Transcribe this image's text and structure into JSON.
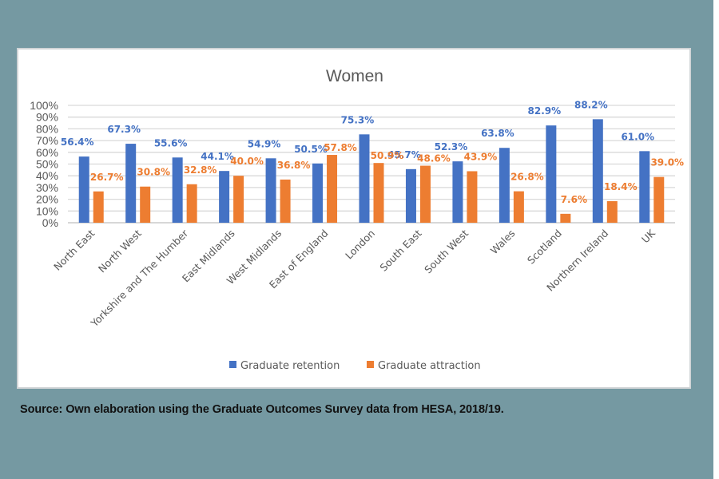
{
  "chart_data": {
    "type": "bar",
    "title": "Women",
    "xlabel": "",
    "ylabel": "",
    "ylim": [
      0,
      100
    ],
    "y_ticks": [
      "0%",
      "10%",
      "20%",
      "30%",
      "40%",
      "50%",
      "60%",
      "70%",
      "80%",
      "90%",
      "100%"
    ],
    "grid": true,
    "legend_position": "bottom",
    "categories": [
      "North East",
      "North West",
      "Yorkshire and The Humber",
      "East Midlands",
      "West Midlands",
      "East of England",
      "London",
      "South East",
      "South West",
      "Wales",
      "Scotland",
      "Northern Ireland",
      "UK"
    ],
    "series": [
      {
        "name": "Graduate retention",
        "color": "#4472c4",
        "values": [
          56.4,
          67.3,
          55.6,
          44.1,
          54.9,
          50.5,
          75.3,
          45.7,
          52.3,
          63.8,
          82.9,
          88.2,
          61.0
        ],
        "labels": [
          "56.4%",
          "67.3%",
          "55.6%",
          "44.1%",
          "54.9%",
          "50.5%",
          "75.3%",
          "45.7%",
          "52.3%",
          "63.8%",
          "82.9%",
          "88.2%",
          "61.0%"
        ]
      },
      {
        "name": "Graduate attraction",
        "color": "#ed7d31",
        "values": [
          26.7,
          30.8,
          32.8,
          40.0,
          36.8,
          57.8,
          50.9,
          48.6,
          43.9,
          26.8,
          7.6,
          18.4,
          39.0
        ],
        "labels": [
          "26.7%",
          "30.8%",
          "32.8%",
          "40.0%",
          "36.8%",
          "57.8%",
          "50.9%",
          "48.6%",
          "43.9%",
          "26.8%",
          "7.6%",
          "18.4%",
          "39.0%"
        ]
      }
    ]
  },
  "source_note": "Source: Own elaboration using the Graduate Outcomes Survey data from HESA, 2018/19."
}
